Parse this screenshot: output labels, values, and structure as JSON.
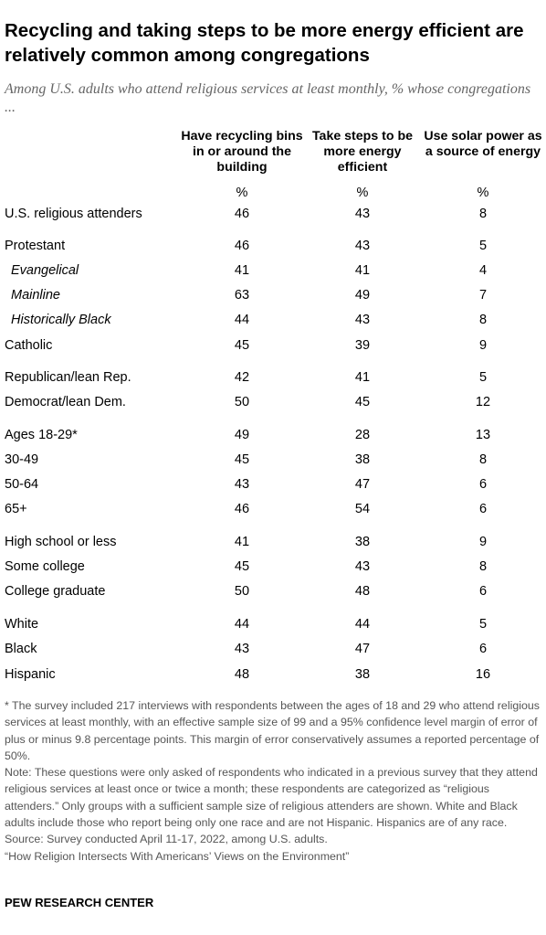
{
  "title": "Recycling and taking steps to be more energy efficient are relatively common among congregations",
  "subtitle": "Among U.S. adults who attend religious services at least monthly, % whose congregations ...",
  "chart_data": {
    "type": "table",
    "columns": [
      "Have recycling bins in or around the building",
      "Take steps to be more energy efficient",
      "Use solar power as a source of energy"
    ],
    "unit_row": [
      "%",
      "%",
      "%"
    ],
    "rows": [
      {
        "label": "U.S. religious attenders",
        "values": [
          46,
          43,
          8
        ]
      },
      {
        "label": "Protestant",
        "values": [
          46,
          43,
          5
        ]
      },
      {
        "label": "Evangelical",
        "sub": true,
        "values": [
          41,
          41,
          4
        ]
      },
      {
        "label": "Mainline",
        "sub": true,
        "values": [
          63,
          49,
          7
        ]
      },
      {
        "label": "Historically Black",
        "sub": true,
        "values": [
          44,
          43,
          8
        ]
      },
      {
        "label": "Catholic",
        "values": [
          45,
          39,
          9
        ]
      },
      {
        "label": "Republican/lean Rep.",
        "values": [
          42,
          41,
          5
        ]
      },
      {
        "label": "Democrat/lean Dem.",
        "values": [
          50,
          45,
          12
        ]
      },
      {
        "label": "Ages 18-29*",
        "values": [
          49,
          28,
          13
        ]
      },
      {
        "label": "30-49",
        "values": [
          45,
          38,
          8
        ]
      },
      {
        "label": "50-64",
        "values": [
          43,
          47,
          6
        ]
      },
      {
        "label": "65+",
        "values": [
          46,
          54,
          6
        ]
      },
      {
        "label": "High school or less",
        "values": [
          41,
          38,
          9
        ]
      },
      {
        "label": "Some college",
        "values": [
          45,
          43,
          8
        ]
      },
      {
        "label": "College graduate",
        "values": [
          50,
          48,
          6
        ]
      },
      {
        "label": "White",
        "values": [
          44,
          44,
          5
        ]
      },
      {
        "label": "Black",
        "values": [
          43,
          47,
          6
        ]
      },
      {
        "label": "Hispanic",
        "values": [
          48,
          38,
          16
        ]
      }
    ]
  },
  "notes": [
    "* The survey included 217 interviews with respondents between the ages of 18 and 29 who attend religious services at least monthly, with an effective sample size of 99 and a 95% confidence level margin of error of plus or minus 9.8 percentage points. This margin of error conservatively assumes a reported percentage of 50%.",
    "Note: These questions were only asked of respondents who indicated in a previous survey that they attend religious services at least once or twice a month; these respondents are categorized as “religious attenders.” Only groups with a sufficient sample size of religious attenders are shown. White and Black adults include those who report being only one race and are not Hispanic. Hispanics are of any race.",
    "Source: Survey conducted April 11-17, 2022, among U.S. adults.",
    "“How Religion Intersects With Americans’ Views on the Environment”"
  ],
  "brand": "PEW RESEARCH CENTER"
}
